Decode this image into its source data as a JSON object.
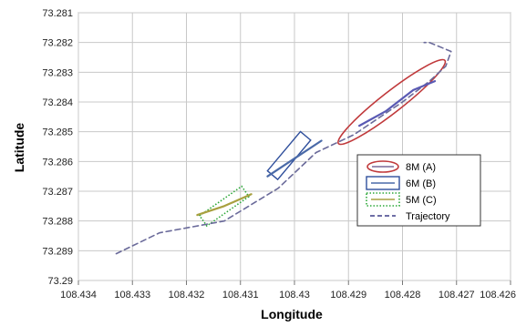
{
  "chart_data": {
    "type": "line",
    "xlabel": "Longitude",
    "ylabel": "Latitude",
    "xlim": [
      108.434,
      108.426
    ],
    "ylim": [
      73.29,
      73.281
    ],
    "x_reversed": true,
    "y_reversed": true,
    "x_ticks": [
      "108.434",
      "108.433",
      "108.432",
      "108.431",
      "108.43",
      "108.429",
      "108.428",
      "108.427",
      "108.426"
    ],
    "y_ticks": [
      "73.281",
      "73.282",
      "73.283",
      "73.284",
      "73.285",
      "73.286",
      "73.287",
      "73.288",
      "73.289",
      "73.29"
    ],
    "grid": true,
    "legend_position": "right",
    "series": [
      {
        "name": "Trajectory",
        "style": "dashed",
        "color": "#6a6a9a",
        "points": [
          [
            108.4333,
            73.2891
          ],
          [
            108.4325,
            73.2884
          ],
          [
            108.4313,
            73.288
          ],
          [
            108.4303,
            73.2869
          ],
          [
            108.4296,
            73.2857
          ],
          [
            108.4289,
            73.2851
          ],
          [
            108.428,
            73.284
          ],
          [
            108.4275,
            73.2833
          ],
          [
            108.4272,
            73.2828
          ],
          [
            108.4271,
            73.2823
          ],
          [
            108.4275,
            73.282
          ],
          [
            108.4276,
            73.282
          ]
        ]
      },
      {
        "name": "8M (A)",
        "style": "solid",
        "color": "#5a5ab4",
        "points": [
          [
            108.4288,
            73.2848
          ],
          [
            108.4283,
            73.2843
          ],
          [
            108.4278,
            73.2836
          ],
          [
            108.4274,
            73.2833
          ]
        ]
      },
      {
        "name": "6M (B)",
        "style": "solid",
        "color": "#4a6aa8",
        "points": [
          [
            108.4305,
            73.2865
          ],
          [
            108.43,
            73.2859
          ],
          [
            108.4295,
            73.2853
          ]
        ]
      },
      {
        "name": "5M (C)",
        "style": "solid",
        "color": "#a8a040",
        "points": [
          [
            108.4318,
            73.2878
          ],
          [
            108.4313,
            73.2875
          ],
          [
            108.4308,
            73.2871
          ]
        ]
      }
    ],
    "legend": [
      {
        "label": "8M (A)",
        "marker": "ellipse",
        "color": "#c0393b"
      },
      {
        "label": "6M (B)",
        "marker": "rect",
        "color": "#2f4f9c"
      },
      {
        "label": "5M (C)",
        "marker": "dotted-rect",
        "color": "#2ea83a"
      },
      {
        "label": "Trajectory",
        "marker": "dashed-line",
        "color": "#5a5a9a"
      }
    ],
    "highlights": [
      {
        "id": "A",
        "shape": "ellipse",
        "color": "#c0393b",
        "center": [
          108.4282,
          73.284
        ],
        "rx_data": 0.00125,
        "ry_data": 0.00035,
        "angle_deg": -38
      },
      {
        "id": "B",
        "shape": "rect",
        "color": "#2f4f9c",
        "center": [
          108.4301,
          73.2858
        ],
        "w_data": 0.00095,
        "h_data": 0.00045,
        "angle_deg": -50
      },
      {
        "id": "C",
        "shape": "dotted-rect",
        "color": "#2ea83a",
        "center": [
          108.4313,
          73.2875
        ],
        "w_data": 0.00095,
        "h_data": 0.00042,
        "angle_deg": -35
      }
    ]
  }
}
